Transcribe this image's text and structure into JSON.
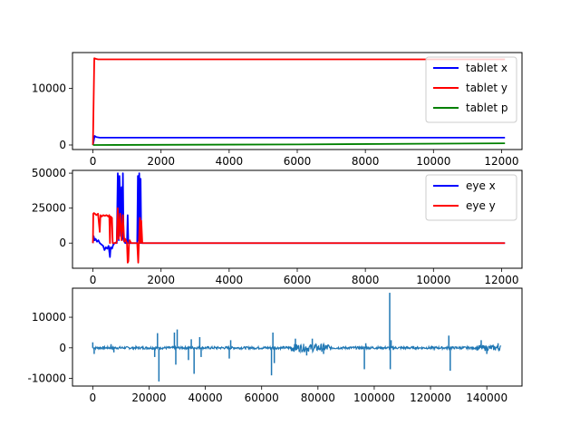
{
  "chart_data": [
    {
      "type": "line",
      "xlim": [
        -600,
        12600
      ],
      "ylim": [
        -800,
        16300
      ],
      "xticks": [
        0,
        2000,
        4000,
        6000,
        8000,
        10000,
        12000
      ],
      "yticks": [
        0,
        10000
      ],
      "legend": "upper right",
      "series": [
        {
          "name": "tablet x",
          "color": "#0000ff",
          "x": [
            0,
            50,
            100,
            200,
            500,
            1000,
            12100
          ],
          "y": [
            0,
            1600,
            1400,
            1300,
            1300,
            1300,
            1300
          ]
        },
        {
          "name": "tablet y",
          "color": "#ff0000",
          "x": [
            0,
            40,
            80,
            150,
            300,
            12100
          ],
          "y": [
            0,
            15300,
            15200,
            15100,
            15100,
            15100
          ]
        },
        {
          "name": "tablet p",
          "color": "#008000",
          "x": [
            0,
            50,
            100,
            6000,
            12100
          ],
          "y": [
            0,
            0,
            0,
            100,
            300
          ]
        }
      ]
    },
    {
      "type": "line",
      "xlim": [
        -600,
        12600
      ],
      "ylim": [
        -18000,
        52000
      ],
      "xticks": [
        0,
        2000,
        4000,
        6000,
        8000,
        10000,
        12000
      ],
      "yticks": [
        0,
        25000,
        50000
      ],
      "legend": "upper right",
      "series": [
        {
          "name": "eye x",
          "color": "#0000ff",
          "x": [
            0,
            20,
            50,
            80,
            120,
            160,
            200,
            250,
            300,
            340,
            380,
            420,
            460,
            500,
            520,
            560,
            600,
            640,
            680,
            700,
            730,
            760,
            780,
            800,
            820,
            840,
            860,
            880,
            900,
            950,
            1000,
            1020,
            1040,
            1060,
            1100,
            1200,
            1300,
            1320,
            1340,
            1360,
            1380,
            1400,
            1420,
            1450,
            1500,
            2000,
            12100
          ],
          "y": [
            0,
            5000,
            2000,
            3000,
            1000,
            2000,
            0,
            -1000,
            -2000,
            -5000,
            -3000,
            -4000,
            -2000,
            -10000,
            -3000,
            -4000,
            -1000,
            0,
            500,
            0,
            50000,
            2000,
            48000,
            30000,
            5000,
            40000,
            3000,
            50000,
            2000,
            0,
            0,
            20000,
            0,
            0,
            0,
            0,
            0,
            48000,
            2000,
            50000,
            0,
            46000,
            0,
            0,
            0,
            0,
            0
          ]
        },
        {
          "name": "eye y",
          "color": "#ff0000",
          "x": [
            0,
            10,
            30,
            60,
            100,
            150,
            200,
            220,
            260,
            300,
            350,
            400,
            450,
            480,
            500,
            520,
            560,
            580,
            600,
            640,
            680,
            700,
            730,
            760,
            800,
            840,
            880,
            920,
            950,
            1000,
            1020,
            1040,
            1060,
            1080,
            1120,
            1200,
            1300,
            1330,
            1350,
            1380,
            1400,
            1420,
            1450,
            1500,
            2000,
            12100
          ],
          "y": [
            0,
            21000,
            21500,
            21000,
            20000,
            21000,
            8000,
            20000,
            19000,
            20000,
            19500,
            20000,
            19000,
            20000,
            0,
            19000,
            18000,
            0,
            0,
            0,
            0,
            1000,
            25000,
            3000,
            21000,
            2000,
            20000,
            1000,
            3000,
            0,
            -14000,
            -13000,
            0,
            2000,
            0,
            0,
            0,
            -14000,
            0,
            18000,
            0,
            16000,
            0,
            0,
            0,
            0
          ]
        }
      ]
    },
    {
      "type": "line",
      "xlim": [
        -7200,
        152500
      ],
      "ylim": [
        -12500,
        19500
      ],
      "xticks": [
        0,
        20000,
        40000,
        60000,
        80000,
        100000,
        120000,
        140000
      ],
      "yticks": [
        -10000,
        0,
        10000
      ],
      "legend": "none",
      "series": [
        {
          "color": "#1f77b4",
          "x": [
            0,
            145000
          ],
          "y": [
            0,
            0
          ],
          "spikes": [
            {
              "x": 0,
              "y": 1800
            },
            {
              "x": 500,
              "y": -2000
            },
            {
              "x": 6500,
              "y": 1200
            },
            {
              "x": 7500,
              "y": -1500
            },
            {
              "x": 22000,
              "y": -3000
            },
            {
              "x": 23500,
              "y": -11000
            },
            {
              "x": 23000,
              "y": 4800
            },
            {
              "x": 29000,
              "y": 5000
            },
            {
              "x": 29500,
              "y": -5500
            },
            {
              "x": 30000,
              "y": 6000
            },
            {
              "x": 34000,
              "y": -4000
            },
            {
              "x": 35000,
              "y": 2800
            },
            {
              "x": 36000,
              "y": -8500
            },
            {
              "x": 38000,
              "y": 3500
            },
            {
              "x": 38500,
              "y": -3000
            },
            {
              "x": 48500,
              "y": -3500
            },
            {
              "x": 49000,
              "y": 2500
            },
            {
              "x": 63500,
              "y": -9000
            },
            {
              "x": 64000,
              "y": 5000
            },
            {
              "x": 64500,
              "y": -5000
            },
            {
              "x": 72000,
              "y": 3000
            },
            {
              "x": 76000,
              "y": -2500
            },
            {
              "x": 78000,
              "y": 3000
            },
            {
              "x": 82000,
              "y": -2000
            },
            {
              "x": 96500,
              "y": -7000
            },
            {
              "x": 97000,
              "y": 1500
            },
            {
              "x": 105500,
              "y": 18000
            },
            {
              "x": 105700,
              "y": -7000
            },
            {
              "x": 106000,
              "y": 2500
            },
            {
              "x": 126500,
              "y": 4000
            },
            {
              "x": 127000,
              "y": -7500
            },
            {
              "x": 138000,
              "y": 2500
            },
            {
              "x": 140000,
              "y": -2000
            },
            {
              "x": 144000,
              "y": 1500
            }
          ]
        }
      ]
    }
  ]
}
